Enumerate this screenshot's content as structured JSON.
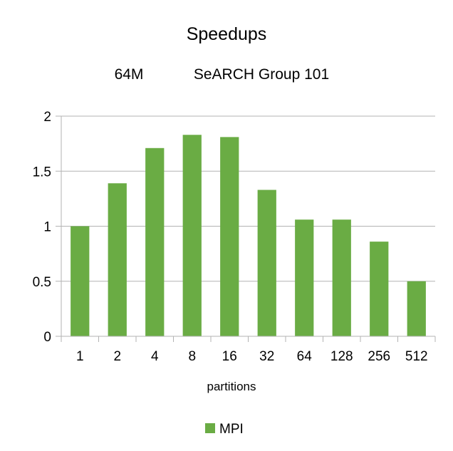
{
  "chart_data": {
    "type": "bar",
    "title": "Speedups",
    "subtitle_left": "64M",
    "subtitle_right": "SeARCH Group 101",
    "xlabel": "partitions",
    "ylabel": "",
    "categories": [
      "1",
      "2",
      "4",
      "8",
      "16",
      "32",
      "64",
      "128",
      "256",
      "512"
    ],
    "series": [
      {
        "name": "MPI",
        "values": [
          1.0,
          1.39,
          1.71,
          1.83,
          1.81,
          1.33,
          1.06,
          1.06,
          0.86,
          0.5
        ],
        "color": "#6aac44"
      }
    ],
    "ylim": [
      0,
      2
    ],
    "yticks": [
      "0",
      "0.5",
      "1",
      "1.5",
      "2"
    ],
    "grid": true,
    "legend_position": "bottom"
  }
}
